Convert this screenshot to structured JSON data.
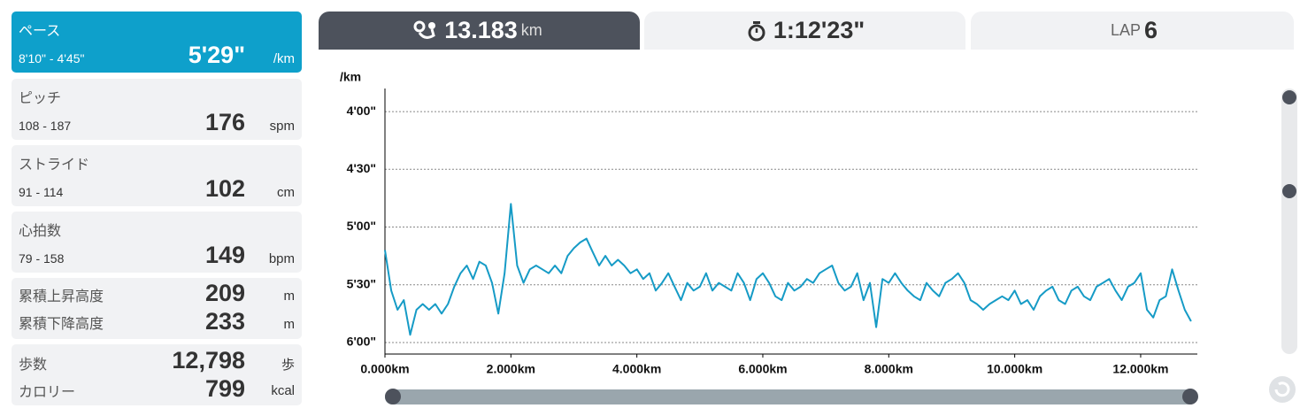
{
  "metrics": [
    {
      "label": "ペース",
      "range": "8'10\" - 4'45\"",
      "value": "5'29\"",
      "unit": "/km"
    },
    {
      "label": "ピッチ",
      "range": "108 - 187",
      "value": "176",
      "unit": "spm"
    },
    {
      "label": "ストライド",
      "range": "91 - 114",
      "value": "102",
      "unit": "cm"
    },
    {
      "label": "心拍数",
      "range": "79 - 158",
      "value": "149",
      "unit": "bpm"
    }
  ],
  "elevation": [
    {
      "label": "累積上昇高度",
      "value": "209",
      "unit": "m"
    },
    {
      "label": "累積下降高度",
      "value": "233",
      "unit": "m"
    }
  ],
  "activity": [
    {
      "label": "歩数",
      "value": "12,798",
      "unit": "歩"
    },
    {
      "label": "カロリー",
      "value": "799",
      "unit": "kcal"
    }
  ],
  "tabs": {
    "distance": {
      "value": "13.183",
      "unit": "km"
    },
    "time": {
      "value": "1:12'23\""
    },
    "lap": {
      "label": "LAP",
      "value": "6"
    }
  },
  "chart_data": {
    "type": "line",
    "y_label": "/km",
    "color": "#169bc6",
    "grid": true,
    "xlim": [
      0,
      12.9
    ],
    "ylim": [
      366,
      228
    ],
    "xticks": [
      {
        "value": 0,
        "label": "0.000km"
      },
      {
        "value": 2,
        "label": "2.000km"
      },
      {
        "value": 4,
        "label": "4.000km"
      },
      {
        "value": 6,
        "label": "6.000km"
      },
      {
        "value": 8,
        "label": "8.000km"
      },
      {
        "value": 10,
        "label": "10.000km"
      },
      {
        "value": 12,
        "label": "12.000km"
      }
    ],
    "yticks": [
      {
        "value": 240,
        "label": "4'00\""
      },
      {
        "value": 270,
        "label": "4'30\""
      },
      {
        "value": 300,
        "label": "5'00\""
      },
      {
        "value": 330,
        "label": "5'30\""
      },
      {
        "value": 360,
        "label": "6'00\""
      }
    ],
    "x": [
      0,
      0.1,
      0.2,
      0.3,
      0.4,
      0.5,
      0.6,
      0.7,
      0.8,
      0.9,
      1,
      1.1,
      1.2,
      1.3,
      1.4,
      1.5,
      1.6,
      1.7,
      1.8,
      1.9,
      2,
      2.1,
      2.2,
      2.3,
      2.4,
      2.5,
      2.6,
      2.7,
      2.8,
      2.9,
      3,
      3.1,
      3.2,
      3.3,
      3.4,
      3.5,
      3.6,
      3.7,
      3.8,
      3.9,
      4,
      4.1,
      4.2,
      4.3,
      4.4,
      4.5,
      4.6,
      4.7,
      4.8,
      4.9,
      5,
      5.1,
      5.2,
      5.3,
      5.4,
      5.5,
      5.6,
      5.7,
      5.8,
      5.9,
      6,
      6.1,
      6.2,
      6.3,
      6.4,
      6.5,
      6.6,
      6.7,
      6.8,
      6.9,
      7,
      7.1,
      7.2,
      7.3,
      7.4,
      7.5,
      7.6,
      7.7,
      7.8,
      7.9,
      8,
      8.1,
      8.2,
      8.3,
      8.4,
      8.5,
      8.6,
      8.7,
      8.8,
      8.9,
      9,
      9.1,
      9.2,
      9.3,
      9.4,
      9.5,
      9.6,
      9.7,
      9.8,
      9.9,
      10,
      10.1,
      10.2,
      10.3,
      10.4,
      10.5,
      10.6,
      10.7,
      10.8,
      10.9,
      11,
      11.1,
      11.2,
      11.3,
      11.4,
      11.5,
      11.6,
      11.7,
      11.8,
      11.9,
      12,
      12.1,
      12.2,
      12.3,
      12.4,
      12.5,
      12.6,
      12.7,
      12.8
    ],
    "values": [
      312,
      333,
      343,
      338,
      356,
      343,
      340,
      343,
      340,
      345,
      340,
      331,
      324,
      320,
      327,
      318,
      320,
      329,
      345,
      324,
      288,
      320,
      329,
      322,
      320,
      322,
      324,
      320,
      324,
      315,
      311,
      308,
      306,
      313,
      320,
      315,
      320,
      317,
      320,
      324,
      322,
      327,
      324,
      333,
      329,
      324,
      331,
      338,
      329,
      333,
      331,
      324,
      333,
      329,
      331,
      333,
      324,
      329,
      338,
      327,
      324,
      329,
      336,
      338,
      329,
      333,
      331,
      327,
      329,
      324,
      322,
      320,
      329,
      333,
      331,
      324,
      338,
      329,
      352,
      327,
      329,
      324,
      329,
      333,
      336,
      338,
      329,
      333,
      336,
      329,
      327,
      324,
      329,
      338,
      340,
      343,
      340,
      338,
      336,
      338,
      333,
      340,
      338,
      343,
      336,
      333,
      331,
      338,
      340,
      333,
      331,
      336,
      338,
      331,
      329,
      327,
      333,
      338,
      331,
      329,
      324,
      343,
      347,
      338,
      336,
      322,
      333,
      343,
      349
    ]
  }
}
